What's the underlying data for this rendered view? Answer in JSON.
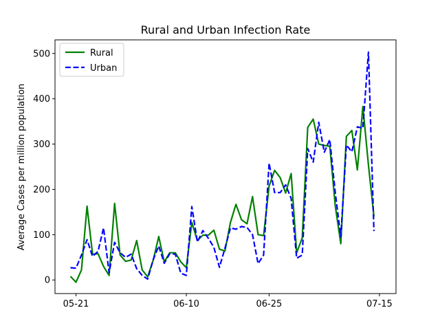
{
  "chart_data": {
    "type": "line",
    "title": "Rural and Urban Infection Rate",
    "xlabel": "",
    "ylabel": "Average Cases per million population",
    "x_start": "2020-05-20",
    "x_tick_labels": [
      "05-21",
      "06-10",
      "06-25",
      "07-15"
    ],
    "x_tick_days": [
      1,
      21,
      36,
      56
    ],
    "xlim": [
      -2.8,
      59
    ],
    "ylim": [
      -30,
      530
    ],
    "y_ticks": [
      0,
      100,
      200,
      300,
      400,
      500
    ],
    "grid": false,
    "legend_position": "top-left",
    "series": [
      {
        "name": "Rural",
        "color": "#008000",
        "style": "solid",
        "points": [
          [
            0,
            8
          ],
          [
            1,
            -5
          ],
          [
            2,
            22
          ],
          [
            3,
            163
          ],
          [
            4,
            57
          ],
          [
            5,
            58
          ],
          [
            6,
            30
          ],
          [
            7,
            10
          ],
          [
            8,
            169
          ],
          [
            9,
            55
          ],
          [
            10,
            41
          ],
          [
            11,
            44
          ],
          [
            12,
            87
          ],
          [
            13,
            22
          ],
          [
            14,
            7
          ],
          [
            15,
            44
          ],
          [
            16,
            96
          ],
          [
            17,
            40
          ],
          [
            18,
            60
          ],
          [
            19,
            60
          ],
          [
            20,
            40
          ],
          [
            21,
            27
          ],
          [
            22,
            127
          ],
          [
            23,
            87
          ],
          [
            24,
            99
          ],
          [
            25,
            99
          ],
          [
            26,
            110
          ],
          [
            27,
            68
          ],
          [
            28,
            64
          ],
          [
            29,
            127
          ],
          [
            30,
            167
          ],
          [
            31,
            133
          ],
          [
            32,
            124
          ],
          [
            33,
            184
          ],
          [
            34,
            100
          ],
          [
            35,
            98
          ],
          [
            36,
            207
          ],
          [
            37,
            242
          ],
          [
            38,
            226
          ],
          [
            39,
            192
          ],
          [
            40,
            235
          ],
          [
            41,
            60
          ],
          [
            42,
            93
          ],
          [
            43,
            337
          ],
          [
            44,
            355
          ],
          [
            45,
            300
          ],
          [
            46,
            297
          ],
          [
            47,
            295
          ],
          [
            48,
            163
          ],
          [
            49,
            80
          ],
          [
            50,
            317
          ],
          [
            51,
            330
          ],
          [
            52,
            243
          ],
          [
            53,
            383
          ],
          [
            54,
            254
          ],
          [
            55,
            140
          ]
        ]
      },
      {
        "name": "Urban",
        "color": "#0000ff",
        "style": "dashed",
        "points": [
          [
            0,
            27
          ],
          [
            1,
            26
          ],
          [
            2,
            55
          ],
          [
            3,
            89
          ],
          [
            4,
            52
          ],
          [
            5,
            63
          ],
          [
            6,
            115
          ],
          [
            7,
            16
          ],
          [
            8,
            83
          ],
          [
            9,
            60
          ],
          [
            10,
            50
          ],
          [
            11,
            57
          ],
          [
            12,
            25
          ],
          [
            13,
            10
          ],
          [
            14,
            2
          ],
          [
            15,
            45
          ],
          [
            16,
            75
          ],
          [
            17,
            37
          ],
          [
            18,
            58
          ],
          [
            19,
            57
          ],
          [
            20,
            15
          ],
          [
            21,
            10
          ],
          [
            22,
            162
          ],
          [
            23,
            84
          ],
          [
            24,
            109
          ],
          [
            25,
            92
          ],
          [
            26,
            72
          ],
          [
            27,
            28
          ],
          [
            28,
            70
          ],
          [
            29,
            115
          ],
          [
            30,
            112
          ],
          [
            31,
            118
          ],
          [
            32,
            116
          ],
          [
            33,
            100
          ],
          [
            34,
            36
          ],
          [
            35,
            55
          ],
          [
            36,
            258
          ],
          [
            37,
            193
          ],
          [
            38,
            193
          ],
          [
            39,
            210
          ],
          [
            40,
            180
          ],
          [
            41,
            48
          ],
          [
            42,
            55
          ],
          [
            43,
            290
          ],
          [
            44,
            260
          ],
          [
            45,
            348
          ],
          [
            46,
            282
          ],
          [
            47,
            310
          ],
          [
            48,
            192
          ],
          [
            49,
            95
          ],
          [
            50,
            298
          ],
          [
            51,
            283
          ],
          [
            52,
            338
          ],
          [
            53,
            335
          ],
          [
            54,
            503
          ],
          [
            55,
            108
          ]
        ]
      }
    ]
  }
}
